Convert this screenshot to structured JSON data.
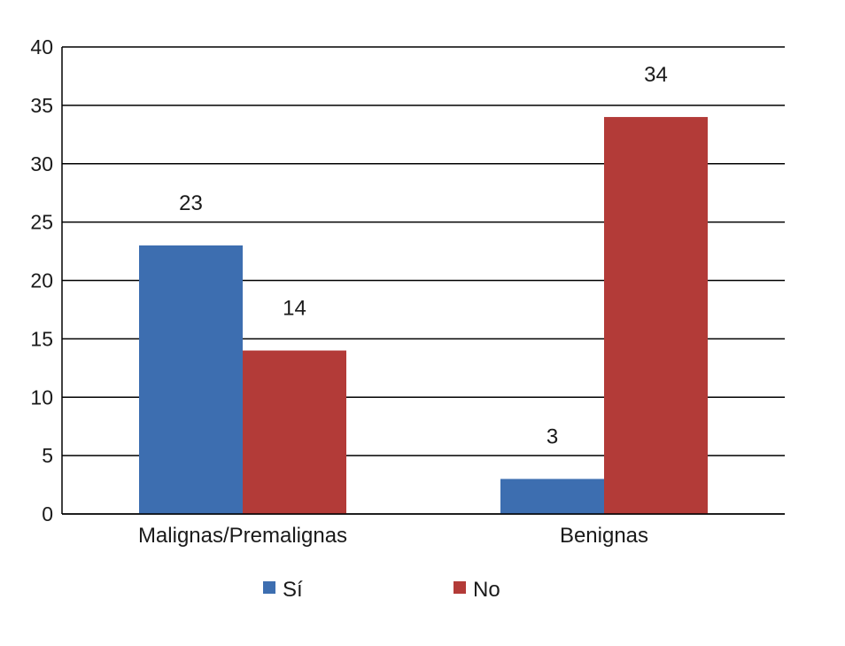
{
  "chart_data": {
    "type": "bar",
    "title": "",
    "xlabel": "",
    "ylabel": "",
    "categories": [
      "Malignas/Premalignas",
      "Benignas"
    ],
    "series": [
      {
        "name": "Sí",
        "values": [
          23,
          3
        ],
        "color": "#3d6eb0"
      },
      {
        "name": "No",
        "values": [
          14,
          34
        ],
        "color": "#b33b38"
      }
    ],
    "ylim": [
      0,
      40
    ],
    "yticks": [
      0,
      5,
      10,
      15,
      20,
      25,
      30,
      35,
      40
    ],
    "grid": true,
    "data_labels": true,
    "legend_position": "bottom"
  }
}
